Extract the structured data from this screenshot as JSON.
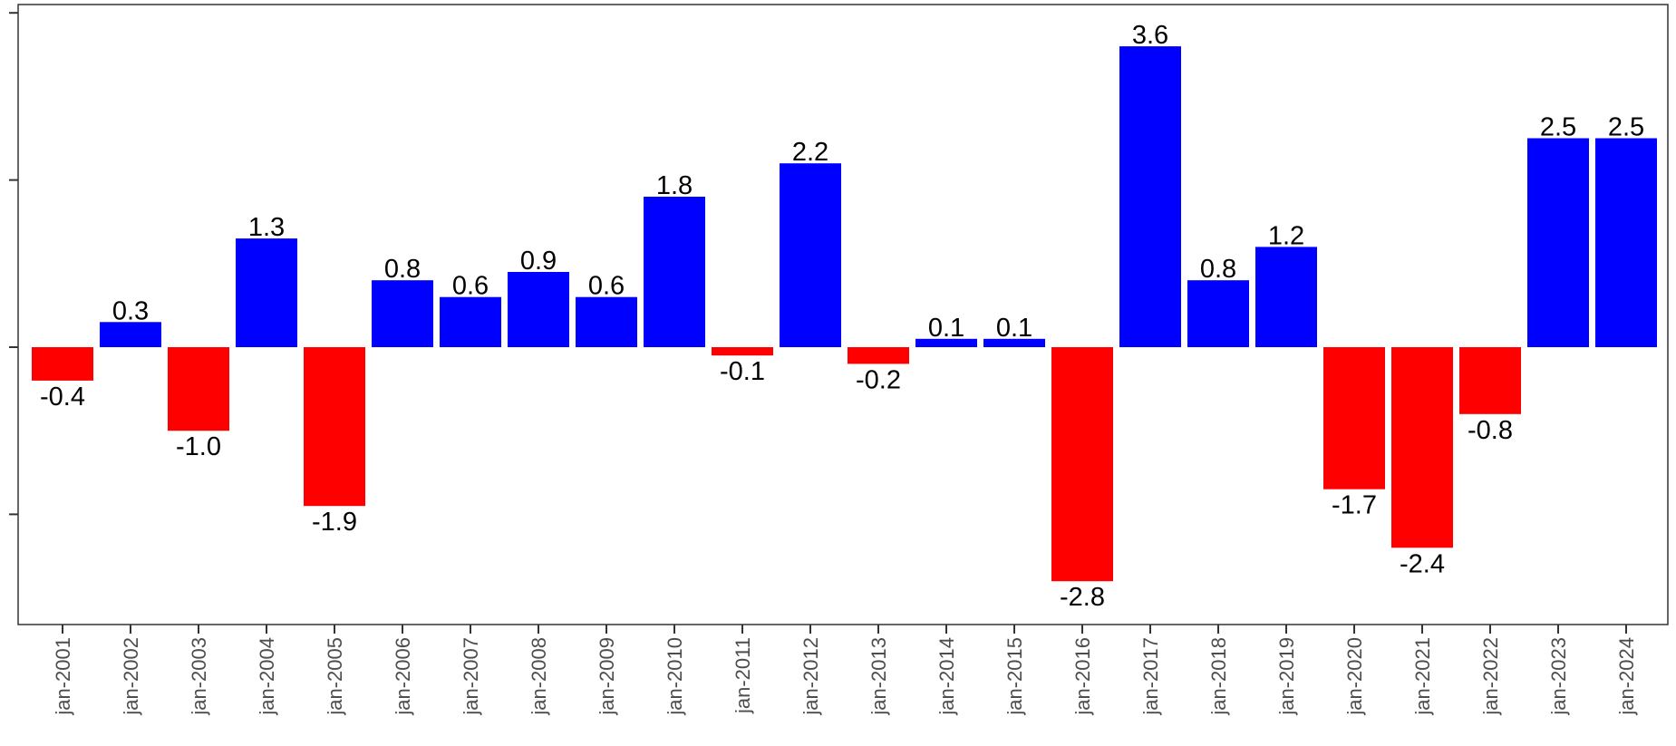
{
  "chart_data": {
    "type": "bar",
    "title": "",
    "xlabel": "",
    "ylabel": "",
    "categories": [
      "jan-2001",
      "jan-2002",
      "jan-2003",
      "jan-2004",
      "jan-2005",
      "jan-2006",
      "jan-2007",
      "jan-2008",
      "jan-2009",
      "jan-2010",
      "jan-2011",
      "jan-2012",
      "jan-2013",
      "jan-2014",
      "jan-2015",
      "jan-2016",
      "jan-2017",
      "jan-2018",
      "jan-2019",
      "jan-2020",
      "jan-2021",
      "jan-2022",
      "jan-2023",
      "jan-2024"
    ],
    "values": [
      -0.4,
      0.3,
      -1.0,
      1.3,
      -1.9,
      0.8,
      0.6,
      0.9,
      0.6,
      1.8,
      -0.1,
      2.2,
      -0.2,
      0.1,
      0.1,
      -2.8,
      3.6,
      0.8,
      1.2,
      -1.7,
      -2.4,
      -0.8,
      2.5,
      2.5
    ],
    "labels": [
      "-0.4",
      "0.3",
      "-1.0",
      "1.3",
      "-1.9",
      "0.8",
      "0.6",
      "0.9",
      "0.6",
      "1.8",
      "-0.1",
      "2.2",
      "-0.2",
      "0.1",
      "0.1",
      "-2.8",
      "3.6",
      "0.8",
      "1.2",
      "-1.7",
      "-2.4",
      "-0.8",
      "2.5",
      "2.5"
    ],
    "ylim": [
      -3.3,
      4.1
    ],
    "y_ticks": [
      -2,
      0,
      2,
      4
    ],
    "y_tick_labels_visible": false,
    "grid": false,
    "legend": "none",
    "colors": {
      "positive": "#0000ff",
      "negative": "#ff0000",
      "axis": "#333333",
      "tick_text": "#4d4d4d",
      "label_text": "#000000"
    }
  }
}
